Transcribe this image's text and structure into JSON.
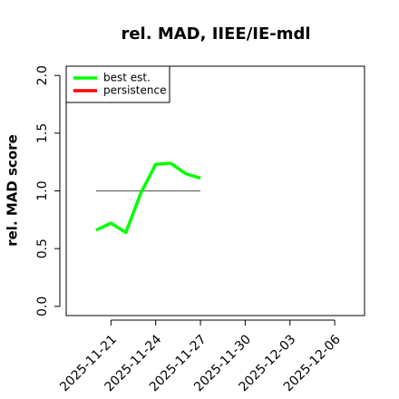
{
  "chart_data": {
    "type": "line",
    "title": "rel. MAD, IIEE/IE-mdl",
    "y_label": "rel. MAD score",
    "x": [
      "2025-11-20",
      "2025-11-21",
      "2025-11-22",
      "2025-11-23",
      "2025-11-24",
      "2025-11-25",
      "2025-11-26",
      "2025-11-27"
    ],
    "series": [
      {
        "name": "best est.",
        "color": "#00ff00",
        "values": [
          0.66,
          0.72,
          0.64,
          0.98,
          1.23,
          1.24,
          1.15,
          1.11
        ]
      },
      {
        "name": "persistence",
        "color": "#ff0000",
        "values": [
          null,
          null,
          null,
          null,
          null,
          null,
          null,
          null
        ]
      }
    ],
    "reference_line": 1,
    "reference_color": "#666666",
    "xlim": [
      "2025-11-18",
      "2025-12-08"
    ],
    "xticks": [
      "2025-11-21",
      "2025-11-24",
      "2025-11-27",
      "2025-11-30",
      "2025-12-03",
      "2025-12-06"
    ],
    "ylim": [
      -0.08,
      2.08
    ],
    "yticks": [
      {
        "value": 0,
        "label": "0.0"
      },
      0.5,
      {
        "value": 1,
        "label": "1.0"
      },
      1.5,
      {
        "value": 2,
        "label": "2.0"
      }
    ],
    "legend": "top-left"
  }
}
